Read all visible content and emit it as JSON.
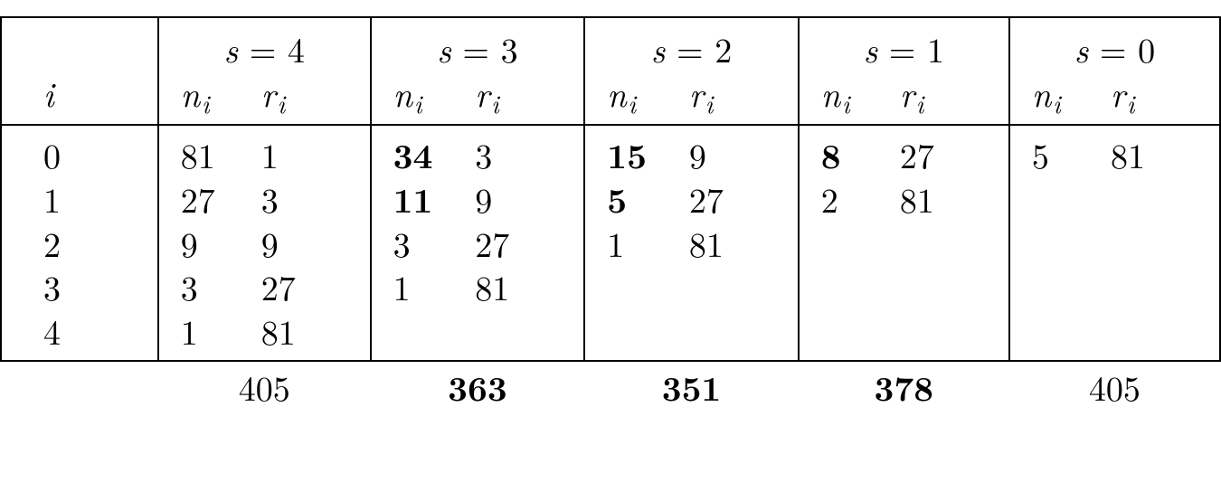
{
  "type": "table",
  "background_color": "#ffffff",
  "text_color": "#000000",
  "border_color": "#000000",
  "font_size_pt": 28,
  "header": {
    "i_label": "i",
    "s_labels": [
      "s = 4",
      "s = 3",
      "s = 2",
      "s = 1",
      "s = 0"
    ],
    "sub_n": "n",
    "sub_r": "r",
    "sub_i": "i"
  },
  "rows": [
    {
      "i": "0",
      "cells": [
        {
          "n": "81",
          "r": "1"
        },
        {
          "n": "34",
          "r": "3",
          "bold_n": true
        },
        {
          "n": "15",
          "r": "9",
          "bold_n": true
        },
        {
          "n": "8",
          "r": "27",
          "bold_n": true
        },
        {
          "n": "5",
          "r": "81"
        }
      ]
    },
    {
      "i": "1",
      "cells": [
        {
          "n": "27",
          "r": "3"
        },
        {
          "n": "11",
          "r": "9",
          "bold_n": true
        },
        {
          "n": "5",
          "r": "27",
          "bold_n": true
        },
        {
          "n": "2",
          "r": "81"
        },
        {
          "n": "",
          "r": ""
        }
      ]
    },
    {
      "i": "2",
      "cells": [
        {
          "n": "9",
          "r": "9"
        },
        {
          "n": "3",
          "r": "27"
        },
        {
          "n": "1",
          "r": "81"
        },
        {
          "n": "",
          "r": ""
        },
        {
          "n": "",
          "r": ""
        }
      ]
    },
    {
      "i": "3",
      "cells": [
        {
          "n": "3",
          "r": "27"
        },
        {
          "n": "1",
          "r": "81"
        },
        {
          "n": "",
          "r": ""
        },
        {
          "n": "",
          "r": ""
        },
        {
          "n": "",
          "r": ""
        }
      ]
    },
    {
      "i": "4",
      "cells": [
        {
          "n": "1",
          "r": "81"
        },
        {
          "n": "",
          "r": ""
        },
        {
          "n": "",
          "r": ""
        },
        {
          "n": "",
          "r": ""
        },
        {
          "n": "",
          "r": ""
        }
      ]
    }
  ],
  "totals": [
    {
      "value": "405",
      "bold": false
    },
    {
      "value": "363",
      "bold": true
    },
    {
      "value": "351",
      "bold": true
    },
    {
      "value": "378",
      "bold": true
    },
    {
      "value": "405",
      "bold": false
    }
  ]
}
